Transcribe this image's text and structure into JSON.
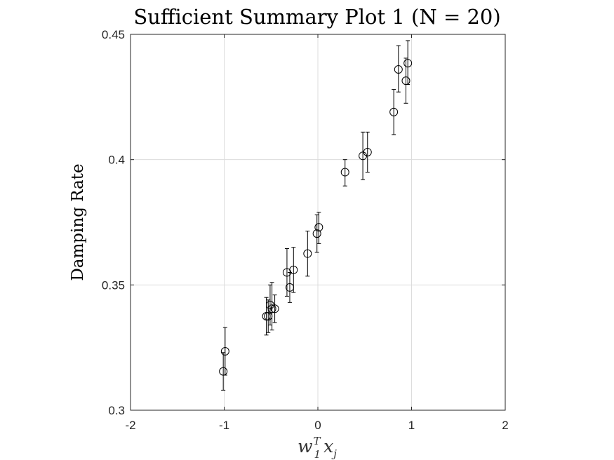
{
  "chart_data": {
    "type": "scatter",
    "title": "Sufficient Summary Plot 1 (N = 20)",
    "ylabel": "Damping Rate",
    "xlabel": {
      "base": "w",
      "sup": "T",
      "sub": "1",
      "base2": "x",
      "sub2": "j"
    },
    "xlim": [
      -2,
      2
    ],
    "ylim": [
      0.3,
      0.45
    ],
    "xticks": [
      -2,
      -1,
      0,
      1,
      2
    ],
    "xtick_labels": [
      "-2",
      "-1",
      "0",
      "1",
      "2"
    ],
    "yticks": [
      0.3,
      0.35,
      0.4,
      0.45
    ],
    "ytick_labels": [
      "0.3",
      "0.35",
      "0.4",
      "0.45"
    ],
    "grid": true,
    "marker": "open-circle",
    "points": [
      {
        "x": -1.01,
        "y": 0.3155,
        "lo": 0.308,
        "hi": 0.323
      },
      {
        "x": -0.99,
        "y": 0.3235,
        "lo": 0.314,
        "hi": 0.333
      },
      {
        "x": -0.55,
        "y": 0.3375,
        "lo": 0.33,
        "hi": 0.345
      },
      {
        "x": -0.53,
        "y": 0.3375,
        "lo": 0.331,
        "hi": 0.344
      },
      {
        "x": -0.51,
        "y": 0.342,
        "lo": 0.334,
        "hi": 0.35
      },
      {
        "x": -0.49,
        "y": 0.3405,
        "lo": 0.332,
        "hi": 0.351
      },
      {
        "x": -0.46,
        "y": 0.3405,
        "lo": 0.335,
        "hi": 0.346
      },
      {
        "x": -0.33,
        "y": 0.355,
        "lo": 0.3455,
        "hi": 0.3645
      },
      {
        "x": -0.3,
        "y": 0.349,
        "lo": 0.343,
        "hi": 0.355
      },
      {
        "x": -0.26,
        "y": 0.356,
        "lo": 0.347,
        "hi": 0.365
      },
      {
        "x": -0.11,
        "y": 0.3625,
        "lo": 0.3535,
        "hi": 0.3715
      },
      {
        "x": -0.01,
        "y": 0.3705,
        "lo": 0.363,
        "hi": 0.378
      },
      {
        "x": 0.01,
        "y": 0.373,
        "lo": 0.3665,
        "hi": 0.379
      },
      {
        "x": 0.29,
        "y": 0.395,
        "lo": 0.3895,
        "hi": 0.4
      },
      {
        "x": 0.48,
        "y": 0.4015,
        "lo": 0.392,
        "hi": 0.411
      },
      {
        "x": 0.53,
        "y": 0.403,
        "lo": 0.395,
        "hi": 0.411
      },
      {
        "x": 0.81,
        "y": 0.419,
        "lo": 0.41,
        "hi": 0.428
      },
      {
        "x": 0.86,
        "y": 0.436,
        "lo": 0.427,
        "hi": 0.4455
      },
      {
        "x": 0.94,
        "y": 0.4315,
        "lo": 0.4225,
        "hi": 0.4405
      },
      {
        "x": 0.96,
        "y": 0.4385,
        "lo": 0.43,
        "hi": 0.4475
      }
    ]
  }
}
